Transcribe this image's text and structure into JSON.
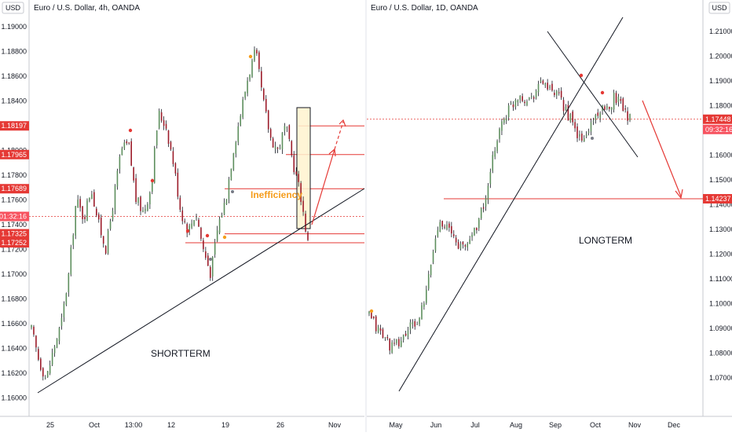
{
  "colors": {
    "up": "#26a69a",
    "down": "#ef5350",
    "candle_body_up": "#5e8f5e",
    "candle_body_down": "#9c1c2a",
    "level": "#e53935",
    "trend": "#131722",
    "orange": "#f59d1c",
    "box_fill": "#fff3cf"
  },
  "left": {
    "title": "Euro / U.S. Dollar, 4h, OANDA",
    "currency": "USD",
    "annotation_text": "Inefficiency",
    "label_text": "SHORTTERM",
    "price_tags": [
      {
        "label": "1.18197",
        "value": 1.18197
      },
      {
        "label": "1.17965",
        "value": 1.17965
      },
      {
        "label": "1.17689",
        "value": 1.17689
      },
      {
        "label": "01:32:16",
        "value": 1.17465
      },
      {
        "label": "1.17325",
        "value": 1.17325
      },
      {
        "label": "1.17252",
        "value": 1.17252
      }
    ]
  },
  "right": {
    "title": "Euro / U.S. Dollar, 1D, OANDA",
    "currency": "USD",
    "label_text": "LONGTERM",
    "price_tags": [
      {
        "label": "1.17448",
        "value": 1.17448
      },
      {
        "label": "09:32:16",
        "value": 1.1685
      },
      {
        "label": "1.14237",
        "value": 1.14237
      }
    ]
  },
  "chart_data": [
    {
      "type": "candlestick",
      "title": "Euro / U.S. Dollar, 4h, OANDA",
      "ylim": [
        1.159,
        1.191
      ],
      "y_ticks": [
        1.16,
        1.162,
        1.164,
        1.166,
        1.168,
        1.17,
        1.172,
        1.174,
        1.176,
        1.178,
        1.18,
        1.182,
        1.184,
        1.186,
        1.188,
        1.19
      ],
      "y_tick_labels": [
        "1.16000",
        "1.16200",
        "1.16400",
        "1.16600",
        "1.16800",
        "1.17000",
        "1.17200",
        "1.17400",
        "1.17600",
        "1.17800",
        "1.18000",
        "1.18200",
        "1.18400",
        "1.18600",
        "1.18800",
        "1.19000"
      ],
      "x_tick_labels": [
        "25",
        "Oct",
        "13:00",
        "12",
        "19",
        "26",
        "Nov"
      ],
      "series": [
        {
          "values": [
            1.1655,
            1.163,
            1.1615,
            1.164,
            1.166,
            1.17,
            1.176,
            1.1745,
            1.177,
            1.174,
            1.172,
            1.176,
            1.18,
            1.1805,
            1.176,
            1.175,
            1.177,
            1.183,
            1.182,
            1.179,
            1.175,
            1.1735,
            1.175,
            1.172,
            1.17,
            1.174,
            1.176,
            1.18,
            1.183,
            1.186,
            1.188,
            1.184,
            1.181,
            1.18,
            1.182,
            1.179,
            1.1765,
            1.1725
          ]
        }
      ],
      "levels": [
        1.18197,
        1.17965,
        1.17689,
        1.17325,
        1.17252
      ],
      "annotations": [
        "Inefficiency",
        "SHORTTERM"
      ]
    },
    {
      "type": "candlestick",
      "title": "Euro / U.S. Dollar, 1D, OANDA",
      "ylim": [
        1.065,
        1.215
      ],
      "y_ticks": [
        1.07,
        1.08,
        1.09,
        1.1,
        1.11,
        1.12,
        1.13,
        1.14,
        1.15,
        1.16,
        1.17,
        1.18,
        1.19,
        1.2,
        1.21
      ],
      "y_tick_labels": [
        "1.07000",
        "1.08000",
        "1.09000",
        "1.10000",
        "1.11000",
        "1.12000",
        "1.13000",
        "1.14000",
        "1.15000",
        "1.16000",
        "1.17000",
        "1.18000",
        "1.19000",
        "1.20000",
        "1.21000"
      ],
      "x_tick_labels": [
        "May",
        "Jun",
        "Jul",
        "Aug",
        "Sep",
        "Oct",
        "Nov",
        "Dec"
      ],
      "series": [
        {
          "values": [
            1.095,
            1.09,
            1.086,
            1.082,
            1.085,
            1.09,
            1.092,
            1.1,
            1.12,
            1.135,
            1.13,
            1.125,
            1.122,
            1.128,
            1.135,
            1.145,
            1.165,
            1.175,
            1.18,
            1.185,
            1.182,
            1.186,
            1.19,
            1.185,
            1.183,
            1.178,
            1.17,
            1.165,
            1.172,
            1.178,
            1.177,
            1.184,
            1.181,
            1.1745
          ]
        }
      ],
      "levels": [
        1.17448,
        1.14237
      ],
      "annotations": [
        "LONGTERM"
      ]
    }
  ]
}
